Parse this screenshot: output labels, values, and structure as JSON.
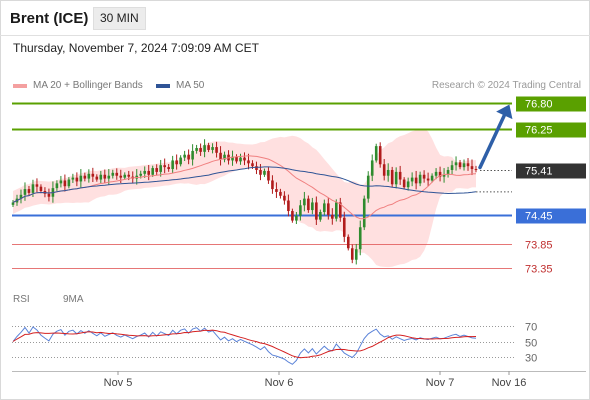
{
  "header": {
    "instrument": "Brent (ICE)",
    "timeframe": "30 MIN",
    "datetime": "Thursday, November 7, 2024 7:09:09 AM CET"
  },
  "legend": {
    "bollinger": "MA 20 + Bollinger Bands",
    "ma50": "MA 50",
    "credit": "Research © 2024 Trading Central"
  },
  "colors": {
    "bull": "#2e8b2e",
    "bear": "#b11b1b",
    "band_fill": "#ffd6d6",
    "ma20": "#f08080",
    "ma50": "#2f5496",
    "resistance": "#5aa000",
    "pivot": "#3a6fd8",
    "support": "#e05555",
    "current": "#333333",
    "arrow": "#2e5fa8",
    "rsi": "#5b83d8",
    "rsi_ma": "#d42020"
  },
  "levels": [
    {
      "value": 76.8,
      "label": "76.80",
      "kind": "resistance"
    },
    {
      "value": 76.25,
      "label": "76.25",
      "kind": "resistance"
    },
    {
      "value": 75.41,
      "label": "75.41",
      "kind": "current"
    },
    {
      "value": 74.45,
      "label": "74.45",
      "kind": "pivot"
    },
    {
      "value": 73.85,
      "label": "73.85",
      "kind": "support"
    },
    {
      "value": 73.35,
      "label": "73.35",
      "kind": "support"
    }
  ],
  "x_axis": [
    "Nov 5",
    "Nov 6",
    "Nov 7",
    "Nov 16"
  ],
  "rsi": {
    "label": "RSI",
    "ma_label": "9MA",
    "levels": [
      "70",
      "50",
      "30"
    ]
  },
  "chart_data": {
    "type": "candlestick",
    "title": "Brent (ICE) 30 MIN",
    "ylim": [
      73.2,
      76.95
    ],
    "series": [
      {
        "name": "Price",
        "close": [
          74.72,
          74.8,
          74.88,
          75.0,
          74.92,
          75.1,
          75.05,
          74.96,
          74.9,
          74.84,
          75.02,
          75.12,
          75.18,
          75.06,
          75.2,
          75.24,
          75.16,
          75.28,
          75.22,
          75.32,
          75.26,
          75.2,
          75.3,
          75.22,
          75.28,
          75.34,
          75.28,
          75.24,
          75.3,
          75.26,
          75.22,
          75.28,
          75.32,
          75.38,
          75.3,
          75.44,
          75.36,
          75.5,
          75.46,
          75.42,
          75.6,
          75.52,
          75.66,
          75.72,
          75.62,
          75.8,
          75.86,
          75.78,
          75.92,
          75.82,
          75.88,
          75.76,
          75.62,
          75.72,
          75.6,
          75.68,
          75.58,
          75.66,
          75.6,
          75.54,
          75.48,
          75.4,
          75.3,
          75.38,
          75.18,
          75.0,
          74.94,
          74.86,
          74.76,
          74.54,
          74.34,
          74.44,
          74.66,
          74.8,
          74.56,
          74.72,
          74.36,
          74.52,
          74.7,
          74.46,
          74.38,
          74.72,
          74.4,
          74.0,
          73.76,
          73.52,
          73.74,
          74.2,
          74.8,
          75.28,
          75.6,
          75.9,
          75.52,
          75.28,
          75.4,
          75.1,
          75.36,
          75.2,
          75.04,
          75.16,
          75.24,
          75.12,
          75.3,
          75.22,
          75.18,
          75.28,
          75.36,
          75.26,
          75.3,
          75.4,
          75.5,
          75.56,
          75.46,
          75.54,
          75.48,
          75.42,
          75.41
        ]
      },
      {
        "name": "MA 20",
        "values": "computed"
      },
      {
        "name": "MA 50",
        "values": "computed"
      }
    ]
  }
}
